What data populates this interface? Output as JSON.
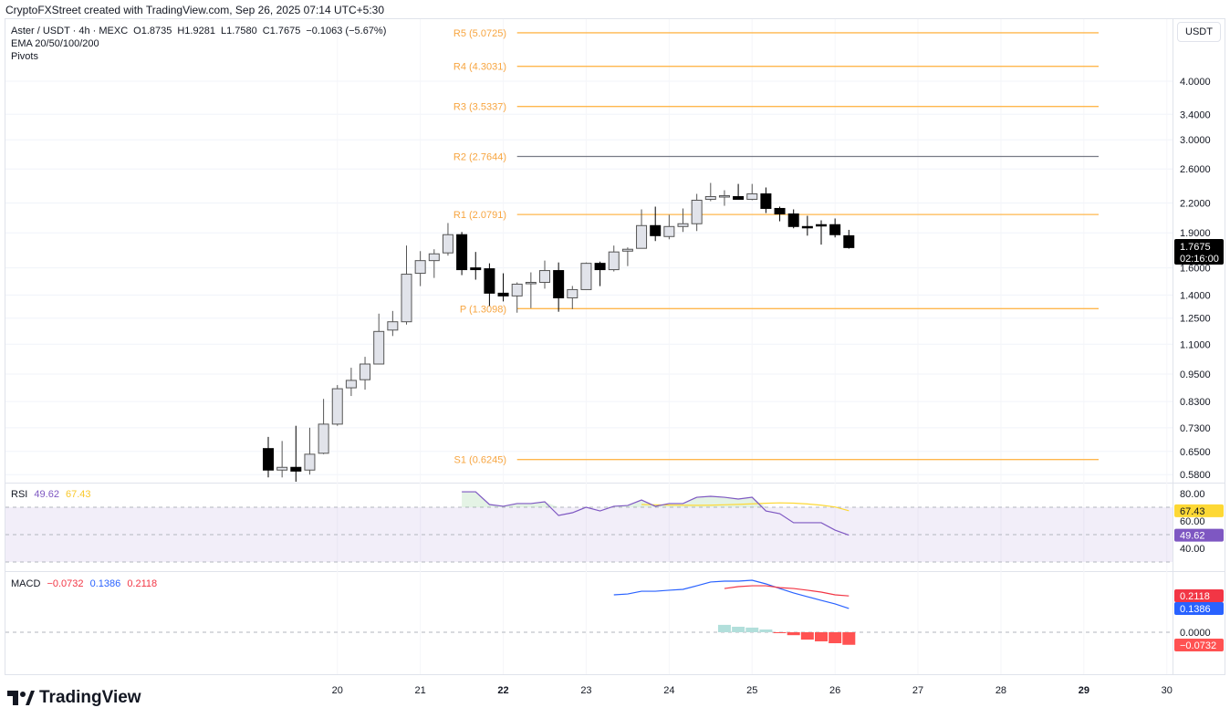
{
  "credit": "CryptoFXStreet created with TradingView.com, Sep 26, 2025 07:14 UTC+5:30",
  "legend": {
    "symbol": "Aster / USDT · 4h · MEXC",
    "open": "O1.8735",
    "high": "H1.9281",
    "low": "L1.7580",
    "close": "C1.7675",
    "change": "−0.1063 (−5.67%)",
    "ema": "EMA 20/50/100/200",
    "pivots": "Pivots"
  },
  "currency_button": "USDT",
  "current_price": {
    "value": "1.7675",
    "countdown": "02:16:00"
  },
  "brand": "TradingView",
  "colors": {
    "up": "#e1e3ea",
    "down": "#000000",
    "pivot": "#ffb74d",
    "pivot_r2": "#787b86",
    "rsi": "#7e57c2",
    "rsi_ma": "#fdd835",
    "macd": "#2962ff",
    "signal": "#f23645",
    "hist_up": "#b2dfdb",
    "hist_down": "#ff5252"
  },
  "chart_data": [
    {
      "type": "candlestick",
      "title": "Aster / USDT · 4h · MEXC",
      "yscale": "log",
      "ylim": [
        0.56,
        5.3
      ],
      "y_ticks": [
        "4.0000",
        "3.4000",
        "3.0000",
        "2.6000",
        "2.2000",
        "1.9000",
        "1.6000",
        "1.4000",
        "1.2500",
        "1.1000",
        "0.9500",
        "0.8300",
        "0.7300",
        "0.6500",
        "0.5800"
      ],
      "x_ticks": [
        {
          "label": "20",
          "bar": 5,
          "bold": false
        },
        {
          "label": "21",
          "bar": 11,
          "bold": false
        },
        {
          "label": "22",
          "bar": 17,
          "bold": true
        },
        {
          "label": "23",
          "bar": 23,
          "bold": false
        },
        {
          "label": "24",
          "bar": 29,
          "bold": false
        },
        {
          "label": "25",
          "bar": 35,
          "bold": false
        },
        {
          "label": "26",
          "bar": 41,
          "bold": false
        },
        {
          "label": "27",
          "bar": 47,
          "bold": false
        },
        {
          "label": "28",
          "bar": 53,
          "bold": false
        },
        {
          "label": "29",
          "bar": 59,
          "bold": true
        },
        {
          "label": "30",
          "bar": 65,
          "bold": false
        }
      ],
      "ohlc": [
        [
          0.659,
          0.698,
          0.572,
          0.593
        ],
        [
          0.593,
          0.684,
          0.572,
          0.601
        ],
        [
          0.601,
          0.737,
          0.56,
          0.59
        ],
        [
          0.593,
          0.73,
          0.58,
          0.641
        ],
        [
          0.644,
          0.841,
          0.641,
          0.743
        ],
        [
          0.743,
          0.9,
          0.737,
          0.884
        ],
        [
          0.888,
          0.98,
          0.853,
          0.921
        ],
        [
          0.924,
          1.034,
          0.88,
          0.998
        ],
        [
          0.998,
          1.278,
          0.998,
          1.171
        ],
        [
          1.179,
          1.295,
          1.145,
          1.228
        ],
        [
          1.228,
          1.785,
          1.211,
          1.551
        ],
        [
          1.558,
          1.737,
          1.463,
          1.658
        ],
        [
          1.658,
          1.753,
          1.523,
          1.714
        ],
        [
          1.722,
          1.994,
          1.699,
          1.883
        ],
        [
          1.883,
          1.908,
          1.544,
          1.586
        ],
        [
          1.6,
          1.73,
          1.51,
          1.586
        ],
        [
          1.593,
          1.636,
          1.327,
          1.413
        ],
        [
          1.413,
          1.558,
          1.357,
          1.394
        ],
        [
          1.394,
          1.49,
          1.284,
          1.477
        ],
        [
          1.481,
          1.565,
          1.313,
          1.49
        ],
        [
          1.49,
          1.658,
          1.445,
          1.579
        ],
        [
          1.579,
          1.643,
          1.29,
          1.381
        ],
        [
          1.381,
          1.464,
          1.307,
          1.438
        ],
        [
          1.438,
          1.643,
          1.438,
          1.636
        ],
        [
          1.636,
          1.65,
          1.463,
          1.586
        ],
        [
          1.586,
          1.785,
          1.572,
          1.73
        ],
        [
          1.737,
          1.769,
          1.614,
          1.753
        ],
        [
          1.761,
          2.132,
          1.761,
          1.969
        ],
        [
          1.969,
          2.161,
          1.825,
          1.874
        ],
        [
          1.866,
          2.076,
          1.841,
          1.96
        ],
        [
          1.96,
          2.142,
          1.908,
          1.987
        ],
        [
          1.987,
          2.301,
          1.917,
          2.23
        ],
        [
          2.24,
          2.428,
          2.22,
          2.27
        ],
        [
          2.275,
          2.342,
          2.17,
          2.28
        ],
        [
          2.27,
          2.416,
          2.24,
          2.24
        ],
        [
          2.24,
          2.416,
          2.23,
          2.301
        ],
        [
          2.301,
          2.374,
          2.094,
          2.142
        ],
        [
          2.142,
          2.161,
          2.011,
          2.085
        ],
        [
          2.085,
          2.132,
          1.943,
          1.96
        ],
        [
          1.96,
          2.066,
          1.874,
          1.955
        ],
        [
          1.978,
          2.021,
          1.793,
          1.975
        ],
        [
          1.978,
          2.039,
          1.858,
          1.883
        ],
        [
          1.8735,
          1.9281,
          1.758,
          1.7675
        ]
      ],
      "pivots": [
        {
          "label": "R5 (5.0725)",
          "value": 5.0725
        },
        {
          "label": "R4 (4.3031)",
          "value": 4.3031
        },
        {
          "label": "R3 (3.5337)",
          "value": 3.5337
        },
        {
          "label": "R2 (2.7644)",
          "value": 2.7644
        },
        {
          "label": "R1 (2.0791)",
          "value": 2.0791
        },
        {
          "label": "P (1.3098)",
          "value": 1.3098
        },
        {
          "label": "S1 (0.6245)",
          "value": 0.6245
        }
      ],
      "pivot_start_bar": 18
    },
    {
      "type": "line",
      "title": "RSI",
      "legend": [
        "49.62",
        "67.43"
      ],
      "ylim": [
        20,
        83
      ],
      "y_ticks": [
        "80.00",
        "60.00",
        "40.00"
      ],
      "bands": [
        30,
        50,
        70
      ],
      "rsi_start_bar": 14,
      "rsi": [
        81.3,
        81.3,
        72,
        70.7,
        72.7,
        72.7,
        74,
        64,
        66,
        70,
        67.3,
        70.7,
        71.3,
        75.3,
        70.7,
        72.7,
        72.7,
        77.3,
        78,
        77.3,
        76,
        77.3,
        67.3,
        65.3,
        58.7,
        58.7,
        58.7,
        53.3,
        49.62
      ],
      "ma_start_bar": 27,
      "rsi_ma": [
        72.0,
        71.8,
        71.6,
        71.5,
        71.4,
        71.5,
        71.8,
        72.1,
        72.5,
        72.9,
        73.2,
        73.0,
        72.4,
        71.5,
        70.2,
        67.43
      ],
      "last_labels": {
        "rsi": "49.62",
        "ma": "67.43"
      }
    },
    {
      "type": "line+bar",
      "title": "MACD",
      "legend": [
        "−0.0732",
        "0.1386",
        "0.2118"
      ],
      "y_ticks": [
        "0.0000"
      ],
      "macd_start_bar": 25,
      "macd": [
        0.218,
        0.223,
        0.239,
        0.239,
        0.245,
        0.25,
        0.271,
        0.293,
        0.298,
        0.298,
        0.303,
        0.282,
        0.255,
        0.229,
        0.207,
        0.186,
        0.165,
        0.1386
      ],
      "signal_start_bar": 33,
      "signal": [
        0.255,
        0.266,
        0.271,
        0.271,
        0.26,
        0.255,
        0.245,
        0.234,
        0.218,
        0.2118
      ],
      "hist_start_bar": 33,
      "histogram": [
        0.043,
        0.032,
        0.027,
        0.016,
        -0.003,
        -0.017,
        -0.043,
        -0.053,
        -0.064,
        -0.0732
      ],
      "last_labels": {
        "signal": "0.2118",
        "macd": "0.1386",
        "hist": "−0.0732"
      }
    }
  ]
}
